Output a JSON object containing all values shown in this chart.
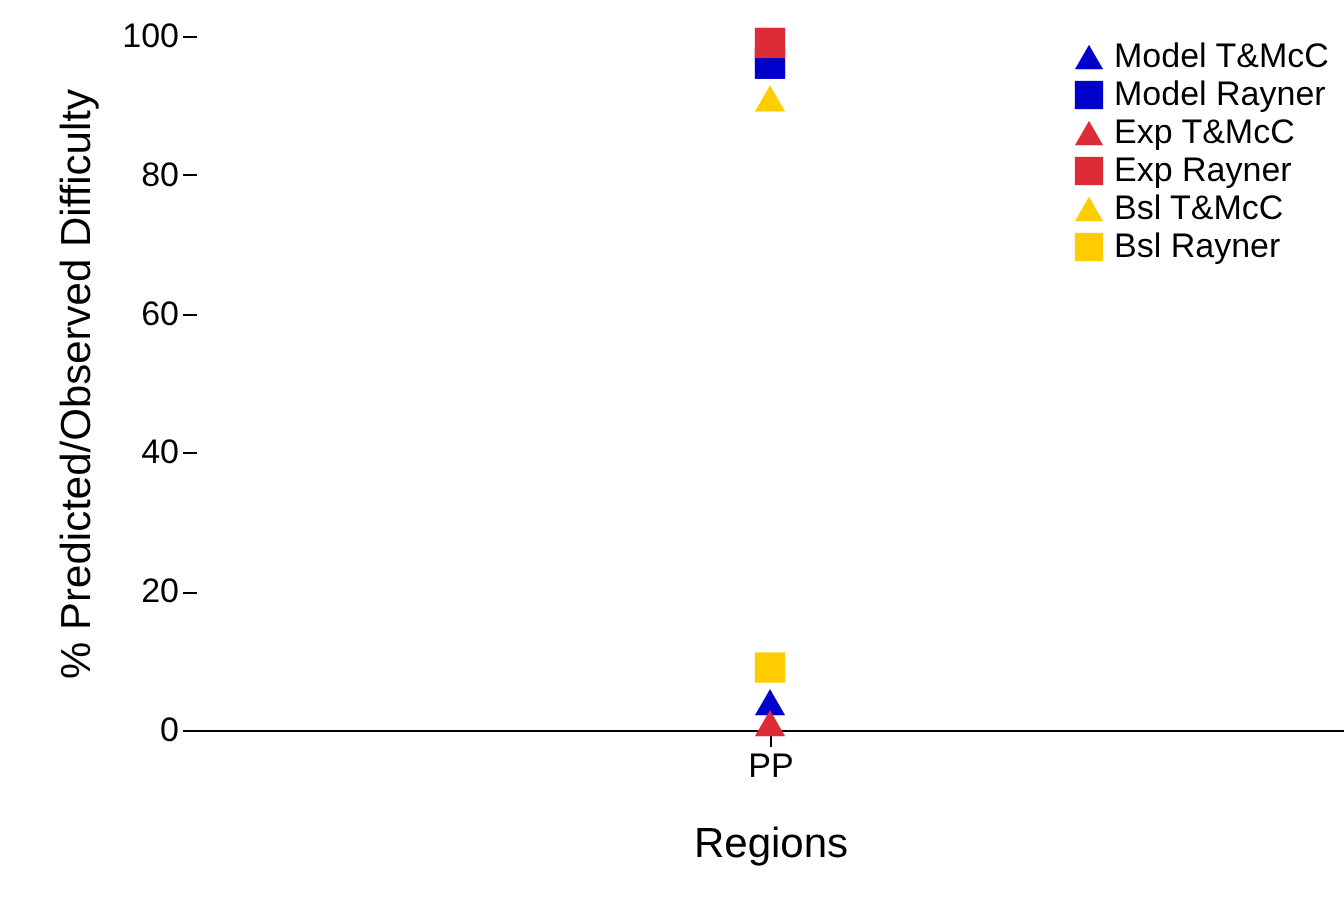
{
  "chart_data": {
    "type": "scatter",
    "xlabel": "Regions",
    "ylabel": "% Predicted/Observed Difficulty",
    "categories": [
      "PP"
    ],
    "ylim": [
      0,
      100
    ],
    "yticks": [
      0,
      20,
      40,
      60,
      80,
      100
    ],
    "grid": false,
    "legend": "top right",
    "series": [
      {
        "name": "Model  T&McC",
        "color": "#0000cc",
        "marker": "triangle",
        "values": [
          4
        ]
      },
      {
        "name": "Model Rayner",
        "color": "#0000cc",
        "marker": "square",
        "values": [
          96
        ]
      },
      {
        "name": "Exp T&McC",
        "color": "#dd2c35",
        "marker": "triangle",
        "values": [
          1
        ]
      },
      {
        "name": "Exp Rayner",
        "color": "#dd2c35",
        "marker": "square",
        "values": [
          99
        ]
      },
      {
        "name": "Bsl T&McC",
        "color": "#ffcc00",
        "marker": "triangle",
        "values": [
          91
        ]
      },
      {
        "name": "Bsl Rayner",
        "color": "#ffcc00",
        "marker": "square",
        "values": [
          9
        ]
      }
    ]
  }
}
